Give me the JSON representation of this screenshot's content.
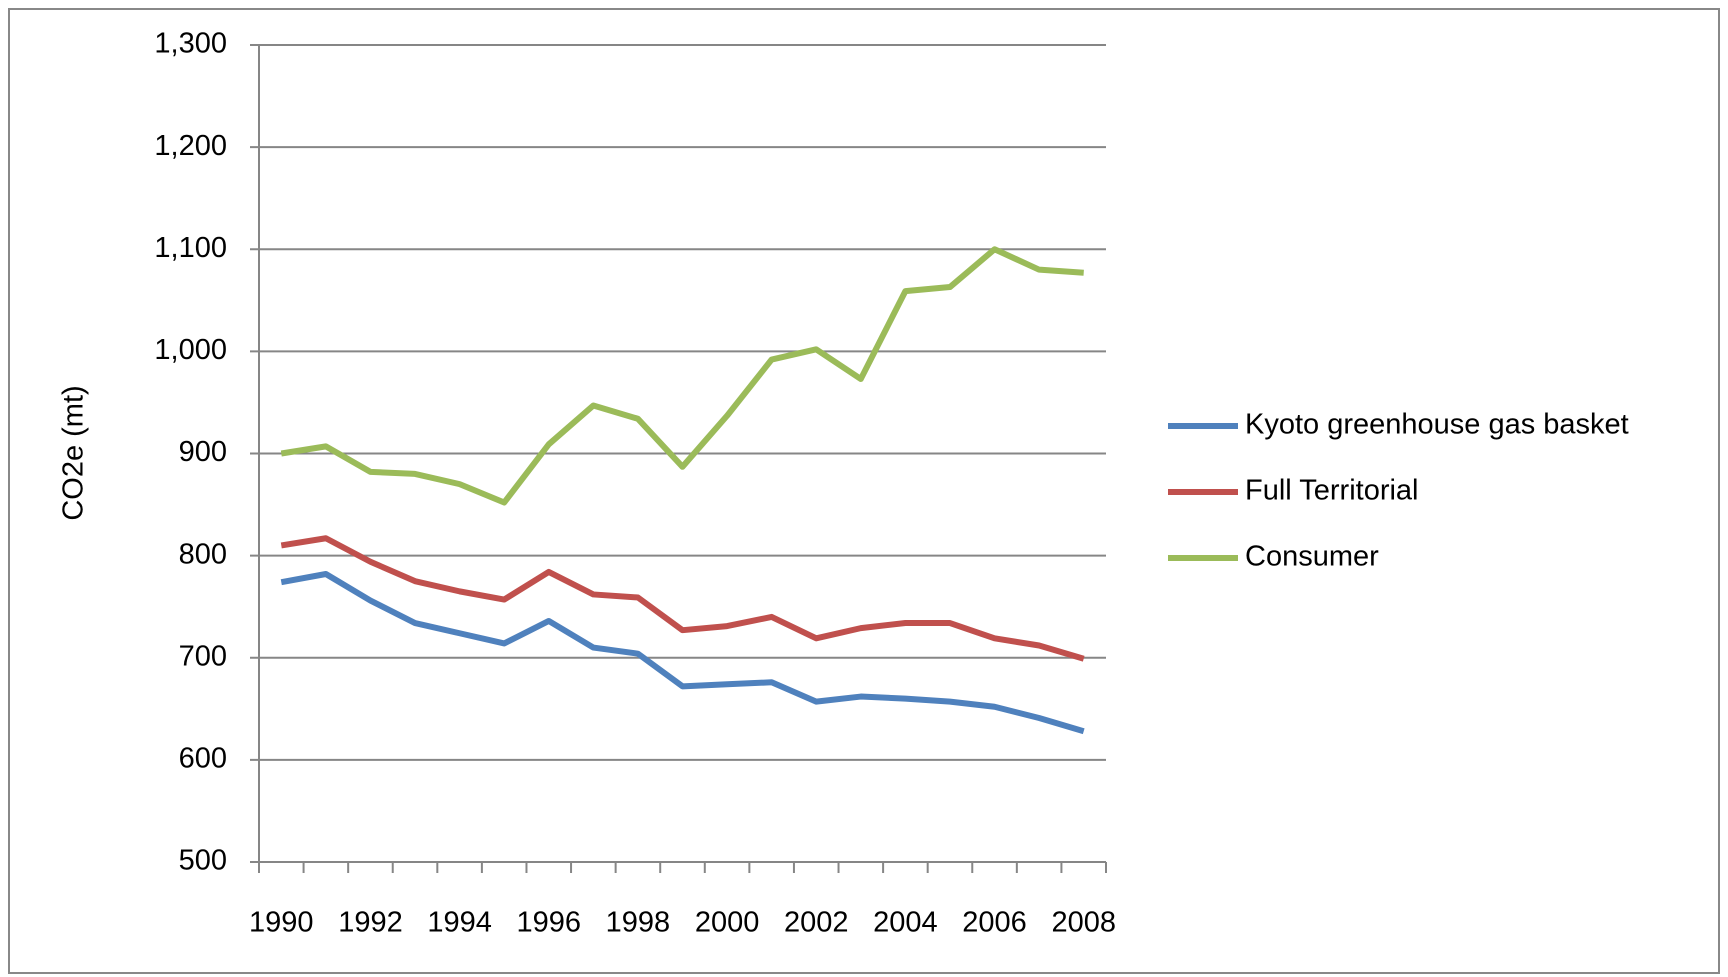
{
  "chart_data": {
    "type": "line",
    "y_label": "CO2e (mt)",
    "categories": [
      "1990",
      null,
      "1992",
      null,
      "1994",
      null,
      "1996",
      null,
      "1998",
      null,
      "2000",
      null,
      "2002",
      null,
      "2004",
      null,
      "2006",
      null,
      "2008"
    ],
    "series": [
      {
        "name": "Kyoto greenhouse gas basket",
        "color": "#4f81bd",
        "values": [
          774,
          782,
          756,
          734,
          724,
          714,
          736,
          710,
          704,
          672,
          674,
          676,
          657,
          662,
          660,
          657,
          652,
          641,
          628
        ]
      },
      {
        "name": "Full Territorial",
        "color": "#c0504d",
        "values": [
          810,
          817,
          794,
          775,
          765,
          757,
          784,
          762,
          759,
          727,
          731,
          740,
          719,
          729,
          734,
          734,
          719,
          712,
          699
        ]
      },
      {
        "name": "Consumer",
        "color": "#9bbb59",
        "values": [
          900,
          907,
          882,
          880,
          870,
          852,
          909,
          947,
          934,
          887,
          937,
          992,
          1002,
          973,
          1059,
          1063,
          1100,
          1080,
          1077
        ]
      }
    ],
    "ylim": [
      500,
      1300
    ],
    "yticks": [
      500,
      600,
      700,
      800,
      900,
      {
        "value": 1000,
        "label": "1,000"
      },
      {
        "value": 1100,
        "label": "1,100"
      },
      {
        "value": 1200,
        "label": "1,200"
      },
      {
        "value": 1300,
        "label": "1,300"
      }
    ],
    "grid": true,
    "legend": "right"
  }
}
